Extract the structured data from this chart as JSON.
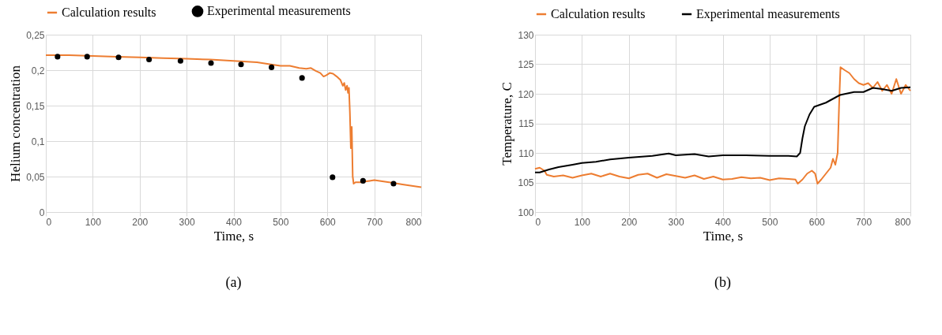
{
  "chart_data": [
    {
      "type": "line",
      "xlabel": "Time, s",
      "ylabel": "Helium concentration",
      "annotations": [
        "(a)"
      ],
      "legend": "top",
      "grid": true,
      "xlim": [
        0,
        800
      ],
      "xticks": [
        0,
        100,
        200,
        300,
        400,
        500,
        600,
        700,
        800
      ],
      "ylim": [
        0,
        0.25
      ],
      "yticks": [
        0,
        {
          "value": 0.05,
          "label": "0,05"
        },
        {
          "value": 0.1,
          "label": "0,1"
        },
        {
          "value": 0.15,
          "label": "0,15"
        },
        {
          "value": 0.2,
          "label": "0,2"
        },
        {
          "value": 0.25,
          "label": "0,25"
        }
      ],
      "series": [
        {
          "name": "Calculation results",
          "color": "#ed7d31",
          "x": [
            0,
            50,
            100,
            150,
            200,
            250,
            300,
            350,
            400,
            450,
            480,
            500,
            520,
            540,
            555,
            565,
            575,
            585,
            592,
            598,
            605,
            612,
            620,
            628,
            633,
            636,
            639,
            642,
            644,
            646,
            648,
            650,
            652,
            654,
            656,
            660,
            670,
            680,
            690,
            700,
            720,
            740,
            760,
            780,
            800
          ],
          "values": [
            0.221,
            0.221,
            0.22,
            0.219,
            0.218,
            0.217,
            0.216,
            0.215,
            0.213,
            0.211,
            0.208,
            0.206,
            0.206,
            0.203,
            0.202,
            0.203,
            0.199,
            0.196,
            0.191,
            0.193,
            0.196,
            0.195,
            0.191,
            0.186,
            0.178,
            0.182,
            0.172,
            0.178,
            0.168,
            0.175,
            0.14,
            0.09,
            0.12,
            0.05,
            0.04,
            0.042,
            0.042,
            0.043,
            0.044,
            0.045,
            0.043,
            0.041,
            0.039,
            0.037,
            0.035
          ]
        },
        {
          "name": "Experimental measurements",
          "type": "scatter",
          "marker": "circle",
          "color": "#000000",
          "x": [
            25,
            88,
            155,
            220,
            287,
            352,
            416,
            481,
            546,
            611,
            676,
            741
          ],
          "values": [
            0.219,
            0.219,
            0.218,
            0.215,
            0.213,
            0.21,
            0.208,
            0.204,
            0.189,
            0.049,
            0.044,
            0.04
          ]
        }
      ]
    },
    {
      "type": "line",
      "xlabel": "Time, s",
      "ylabel": "Temperature,  C",
      "annotations": [
        "(b)"
      ],
      "legend": "top",
      "grid": true,
      "xlim": [
        0,
        800
      ],
      "xticks": [
        0,
        100,
        200,
        300,
        400,
        500,
        600,
        700,
        800
      ],
      "ylim": [
        100,
        130
      ],
      "yticks": [
        100,
        105,
        110,
        115,
        120,
        125,
        130
      ],
      "series": [
        {
          "name": "Calculation results",
          "color": "#ed7d31",
          "x": [
            0,
            10,
            20,
            25,
            40,
            60,
            80,
            100,
            120,
            140,
            160,
            180,
            200,
            220,
            240,
            260,
            280,
            300,
            320,
            340,
            360,
            380,
            400,
            420,
            440,
            460,
            480,
            500,
            520,
            540,
            555,
            560,
            570,
            580,
            590,
            597,
            602,
            610,
            620,
            630,
            635,
            640,
            645,
            648,
            651,
            660,
            670,
            680,
            690,
            700,
            710,
            720,
            730,
            740,
            750,
            760,
            770,
            780,
            790,
            800
          ],
          "values": [
            107.3,
            107.5,
            107,
            106.3,
            106,
            106.2,
            105.8,
            106.2,
            106.5,
            106,
            106.5,
            106,
            105.7,
            106.3,
            106.5,
            105.8,
            106.4,
            106.1,
            105.8,
            106.2,
            105.6,
            106,
            105.5,
            105.6,
            105.9,
            105.7,
            105.8,
            105.4,
            105.7,
            105.6,
            105.5,
            104.8,
            105.5,
            106.5,
            107,
            106.5,
            104.8,
            105.5,
            106.5,
            107.5,
            109,
            108,
            110,
            118,
            124.5,
            124,
            123.5,
            122.5,
            121.8,
            121.5,
            121.8,
            121,
            122,
            120.5,
            121.5,
            120,
            122.5,
            120,
            121.5,
            120.5
          ]
        },
        {
          "name": "Experimental measurements",
          "color": "#000000",
          "x": [
            0,
            10,
            30,
            50,
            80,
            100,
            130,
            160,
            200,
            250,
            285,
            300,
            340,
            370,
            400,
            450,
            500,
            540,
            558,
            565,
            570,
            575,
            585,
            595,
            620,
            650,
            680,
            700,
            720,
            740,
            760,
            780,
            800
          ],
          "values": [
            106.7,
            106.7,
            107.2,
            107.6,
            108,
            108.3,
            108.5,
            108.9,
            109.2,
            109.5,
            109.9,
            109.6,
            109.8,
            109.4,
            109.6,
            109.6,
            109.5,
            109.5,
            109.4,
            110,
            112.5,
            114.5,
            116.5,
            117.8,
            118.5,
            119.8,
            120.3,
            120.3,
            121,
            120.8,
            120.5,
            121,
            121.1
          ]
        }
      ]
    }
  ]
}
